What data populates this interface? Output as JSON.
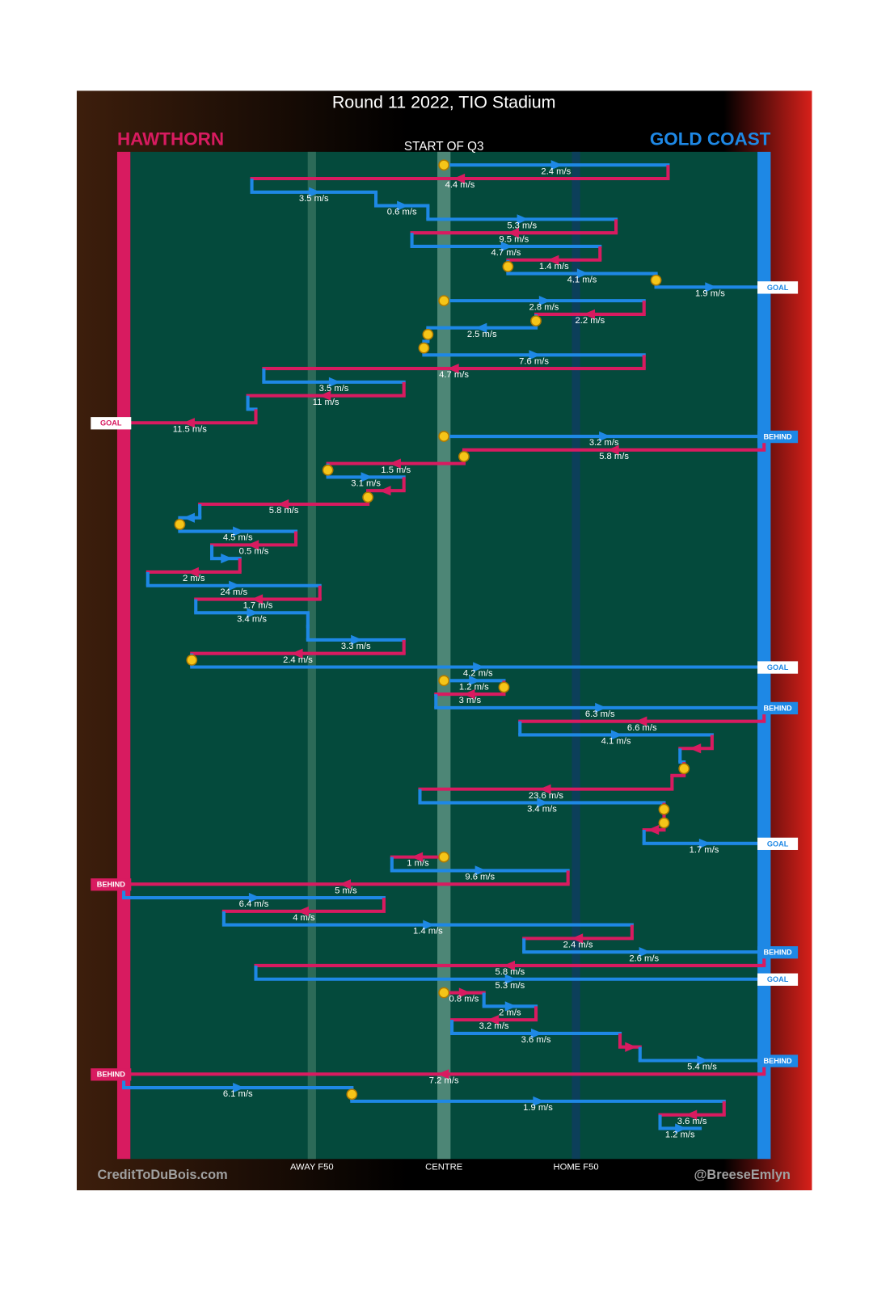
{
  "chart_data": {
    "type": "chain",
    "title": "Round 11 2022, TIO Stadium",
    "subtitle": "START OF Q3",
    "teams": [
      {
        "name": "HAWTHORN",
        "color": "#d81b60"
      },
      {
        "name": "GOLD COAST",
        "color": "#1e88e5"
      }
    ],
    "xlim": [
      0,
      160
    ],
    "zones": [
      {
        "value": 47,
        "label": "AWAY F50"
      },
      {
        "value": 80,
        "label": "CENTRE"
      },
      {
        "value": 113,
        "label": "HOME F50"
      }
    ],
    "credits": [
      "CreditToDuBois.com",
      "@BreeseEmlyn"
    ],
    "moves": [
      {
        "team": 1,
        "from": 80,
        "to": 136,
        "label": "2.4 m/s",
        "circle_start": true
      },
      {
        "team": 0,
        "from": 136,
        "to": 32,
        "label": "4.4 m/s"
      },
      {
        "team": 1,
        "from": 32,
        "to": 63,
        "label": "3.5 m/s"
      },
      {
        "team": 1,
        "from": 63,
        "to": 76,
        "label": "0.6 m/s"
      },
      {
        "team": 1,
        "from": 76,
        "to": 123,
        "label": "5.3 m/s"
      },
      {
        "team": 0,
        "from": 123,
        "to": 72,
        "label": "9.5 m/s"
      },
      {
        "team": 1,
        "from": 72,
        "to": 119,
        "label": "4.7 m/s"
      },
      {
        "team": 0,
        "from": 119,
        "to": 96,
        "label": "1.4 m/s",
        "circle_end": true
      },
      {
        "team": 1,
        "from": 96,
        "to": 133,
        "label": "4.1 m/s",
        "circle_end": true
      },
      {
        "team": 1,
        "from": 133,
        "to": 160,
        "label": "1.9 m/s",
        "outcome": "GOAL"
      },
      {
        "team": 1,
        "from": 80,
        "to": 130,
        "label": "2.8 m/s",
        "circle_start": true,
        "new_chain": true
      },
      {
        "team": 0,
        "from": 130,
        "to": 103,
        "label": "2.2 m/s",
        "circle_end": true
      },
      {
        "team": 1,
        "from": 103,
        "to": 76,
        "label": "2.5 m/s",
        "circle_end": true
      },
      {
        "team": 1,
        "from": 76,
        "to": 75,
        "label": null,
        "circle_end": true
      },
      {
        "team": 1,
        "from": 75,
        "to": 130,
        "label": "7.6 m/s"
      },
      {
        "team": 0,
        "from": 130,
        "to": 35,
        "label": "4.7 m/s"
      },
      {
        "team": 1,
        "from": 35,
        "to": 70,
        "label": "3.5 m/s"
      },
      {
        "team": 0,
        "from": 70,
        "to": 31,
        "label": "11 m/s"
      },
      {
        "team": 1,
        "from": 31,
        "to": 33,
        "label": null
      },
      {
        "team": 0,
        "from": 33,
        "to": 0,
        "label": "11.5 m/s",
        "outcome": "GOAL"
      },
      {
        "team": 1,
        "from": 80,
        "to": 160,
        "label": "3.2 m/s",
        "circle_start": true,
        "new_chain": true,
        "outcome": "BEHIND"
      },
      {
        "team": 0,
        "from": 160,
        "to": 85,
        "label": "5.8 m/s",
        "circle_end": true
      },
      {
        "team": 0,
        "from": 85,
        "to": 51,
        "label": "1.5 m/s",
        "circle_end": true
      },
      {
        "team": 1,
        "from": 51,
        "to": 70,
        "label": "3.1 m/s"
      },
      {
        "team": 0,
        "from": 70,
        "to": 61,
        "label": null,
        "circle_end": true
      },
      {
        "team": 0,
        "from": 61,
        "to": 19,
        "label": "5.8 m/s"
      },
      {
        "team": 1,
        "from": 19,
        "to": 14,
        "label": null,
        "circle_end": true
      },
      {
        "team": 1,
        "from": 14,
        "to": 43,
        "label": "4.5 m/s"
      },
      {
        "team": 0,
        "from": 43,
        "to": 22,
        "label": "0.5 m/s"
      },
      {
        "team": 1,
        "from": 22,
        "to": 29,
        "label": null
      },
      {
        "team": 0,
        "from": 29,
        "to": 6,
        "label": "2 m/s"
      },
      {
        "team": 1,
        "from": 6,
        "to": 49,
        "label": "24 m/s"
      },
      {
        "team": 0,
        "from": 49,
        "to": 18,
        "label": "1.7 m/s"
      },
      {
        "team": 1,
        "from": 18,
        "to": 46,
        "label": "3.4 m/s"
      },
      {
        "team": 1,
        "from": 46,
        "to": 46,
        "label": null
      },
      {
        "team": 1,
        "from": 46,
        "to": 70,
        "label": "3.3 m/s"
      },
      {
        "team": 0,
        "from": 70,
        "to": 17,
        "label": "2.4 m/s",
        "circle_end": true
      },
      {
        "team": 1,
        "from": 17,
        "to": 160,
        "label": "4.2 m/s",
        "outcome": "GOAL"
      },
      {
        "team": 1,
        "from": 80,
        "to": 95,
        "label": "1.2 m/s",
        "circle_start": true,
        "new_chain": true,
        "circle_end": true
      },
      {
        "team": 0,
        "from": 95,
        "to": 78,
        "label": "3 m/s"
      },
      {
        "team": 1,
        "from": 78,
        "to": 160,
        "label": "6.3 m/s",
        "outcome": "BEHIND"
      },
      {
        "team": 0,
        "from": 160,
        "to": 99,
        "label": "6.6 m/s"
      },
      {
        "team": 1,
        "from": 99,
        "to": 147,
        "label": "4.1 m/s"
      },
      {
        "team": 0,
        "from": 147,
        "to": 139,
        "label": null
      },
      {
        "team": 1,
        "from": 139,
        "to": 140,
        "label": null,
        "circle_end": true
      },
      {
        "team": 0,
        "from": 140,
        "to": 137,
        "label": null
      },
      {
        "team": 0,
        "from": 137,
        "to": 74,
        "label": "23.6 m/s"
      },
      {
        "team": 1,
        "from": 74,
        "to": 135,
        "label": "3.4 m/s",
        "circle_end": true
      },
      {
        "team": 0,
        "from": 135,
        "to": 135,
        "label": null,
        "circle_end": true
      },
      {
        "team": 0,
        "from": 135,
        "to": 130,
        "label": null
      },
      {
        "team": 1,
        "from": 130,
        "to": 160,
        "label": "1.7 m/s",
        "outcome": "GOAL"
      },
      {
        "team": 0,
        "from": 80,
        "to": 67,
        "label": "1 m/s",
        "circle_start": true,
        "new_chain": true
      },
      {
        "team": 1,
        "from": 67,
        "to": 111,
        "label": "9.6 m/s"
      },
      {
        "team": 0,
        "from": 111,
        "to": 0,
        "label": "5 m/s",
        "outcome": "BEHIND"
      },
      {
        "team": 1,
        "from": 0,
        "to": 65,
        "label": "6.4 m/s"
      },
      {
        "team": 0,
        "from": 65,
        "to": 25,
        "label": "4 m/s"
      },
      {
        "team": 1,
        "from": 25,
        "to": 127,
        "label": "1.4 m/s"
      },
      {
        "team": 0,
        "from": 127,
        "to": 100,
        "label": "2.4 m/s"
      },
      {
        "team": 1,
        "from": 100,
        "to": 160,
        "label": "2.6 m/s",
        "outcome": "BEHIND"
      },
      {
        "team": 0,
        "from": 160,
        "to": 33,
        "label": "5.8 m/s"
      },
      {
        "team": 1,
        "from": 33,
        "to": 160,
        "label": "5.3 m/s",
        "outcome": "GOAL"
      },
      {
        "team": 0,
        "from": 80,
        "to": 90,
        "label": "0.8 m/s",
        "circle_start": true,
        "new_chain": true
      },
      {
        "team": 1,
        "from": 90,
        "to": 103,
        "label": "2 m/s"
      },
      {
        "team": 0,
        "from": 103,
        "to": 82,
        "label": "3.2 m/s"
      },
      {
        "team": 1,
        "from": 82,
        "to": 124,
        "label": "3.6 m/s"
      },
      {
        "team": 0,
        "from": 124,
        "to": 129,
        "label": null
      },
      {
        "team": 1,
        "from": 129,
        "to": 160,
        "label": "5.4 m/s",
        "outcome": "BEHIND"
      },
      {
        "team": 0,
        "from": 160,
        "to": 0,
        "label": "7.2 m/s",
        "outcome": "BEHIND"
      },
      {
        "team": 1,
        "from": 0,
        "to": 57,
        "label": "6.1 m/s",
        "circle_end": true
      },
      {
        "team": 1,
        "from": 57,
        "to": 150,
        "label": "1.9 m/s"
      },
      {
        "team": 0,
        "from": 150,
        "to": 134,
        "label": "3.6 m/s"
      },
      {
        "team": 1,
        "from": 134,
        "to": 144,
        "label": "1.2 m/s"
      }
    ]
  }
}
